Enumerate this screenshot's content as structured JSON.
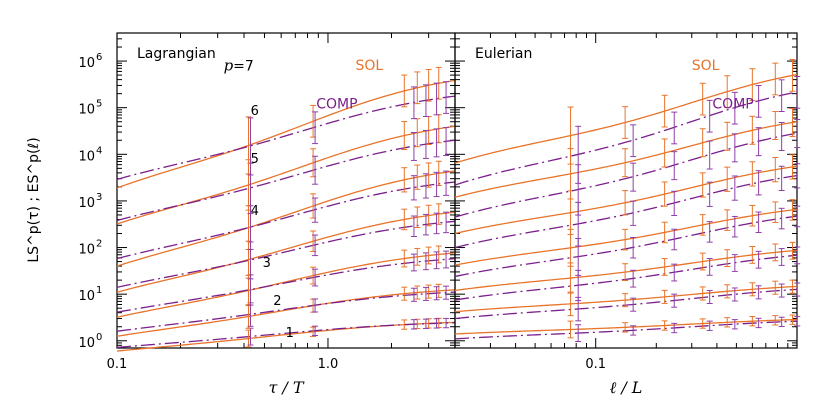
{
  "colors": {
    "sol": "#e8742a",
    "comp": "#7b1f8c",
    "axes": "#000000"
  },
  "chart_data": [
    {
      "type": "line",
      "title": "Lagrangian",
      "xlabel": "τ / T",
      "ylabel": "LS^p(τ) ; ES^p(ℓ)",
      "xscale": "log",
      "yscale": "log",
      "xlim": [
        0.1,
        4.0
      ],
      "ylim": [
        0.7,
        4000000
      ],
      "x_tick_labels": [
        {
          "value": 0.1,
          "label": "0.1"
        },
        {
          "value": 1.0,
          "label": "1.0"
        }
      ],
      "y_tick_labels": [
        {
          "value": 1,
          "base": "10",
          "exp": "0"
        },
        {
          "value": 10,
          "base": "10",
          "exp": "1"
        },
        {
          "value": 100,
          "base": "10",
          "exp": "2"
        },
        {
          "value": 1000,
          "base": "10",
          "exp": "3"
        },
        {
          "value": 10000,
          "base": "10",
          "exp": "4"
        },
        {
          "value": 100000,
          "base": "10",
          "exp": "5"
        },
        {
          "value": 1000000,
          "base": "10",
          "exp": "6"
        }
      ],
      "series_labels": {
        "sol": "SOL",
        "comp": "COMP"
      },
      "order_labels": [
        {
          "p": 7,
          "prefix": "p",
          "text": "=7",
          "x": 0.32,
          "y": 620000
        },
        {
          "p": 6,
          "text": "6",
          "x": 0.43,
          "y": 70000
        },
        {
          "p": 5,
          "text": "5",
          "x": 0.43,
          "y": 6500
        },
        {
          "p": 4,
          "text": "4",
          "x": 0.43,
          "y": 500
        },
        {
          "p": 3,
          "text": "3",
          "x": 0.49,
          "y": 38
        },
        {
          "p": 2,
          "text": "2",
          "x": 0.55,
          "y": 5.8
        },
        {
          "p": 1,
          "text": "1",
          "x": 0.63,
          "y": 1.2
        }
      ],
      "legend_positions": {
        "sol": {
          "x": 1.35,
          "y": 650000
        },
        "comp": {
          "x": 0.88,
          "y": 95000
        }
      },
      "curves": [
        {
          "p": 1,
          "sol_plateau": 2.8,
          "comp_plateau": 2.7,
          "sol_start": 0.6,
          "comp_start": 0.72,
          "knee": 0.55
        },
        {
          "p": 2,
          "sol_plateau": 15,
          "comp_plateau": 13,
          "sol_start": 1.25,
          "comp_start": 1.6,
          "knee": 0.6
        },
        {
          "p": 3,
          "sol_plateau": 100,
          "comp_plateau": 72,
          "sol_start": 3.2,
          "comp_start": 4.1,
          "knee": 0.65
        },
        {
          "p": 4,
          "sol_plateau": 800,
          "comp_plateau": 480,
          "sol_start": 11,
          "comp_start": 14,
          "knee": 0.7
        },
        {
          "p": 5,
          "sol_plateau": 6500,
          "comp_plateau": 3500,
          "sol_start": 40,
          "comp_start": 58,
          "knee": 0.72
        },
        {
          "p": 6,
          "sol_plateau": 60000,
          "comp_plateau": 28000,
          "sol_start": 320,
          "comp_start": 380,
          "knee": 0.75
        },
        {
          "p": 7,
          "sol_plateau": 600000,
          "comp_plateau": 250000,
          "sol_start": 1900,
          "comp_start": 2900,
          "knee": 0.78
        }
      ],
      "errorbar_x": {
        "sol": [
          0.42,
          0.85,
          2.3,
          2.65,
          3.0,
          3.35
        ],
        "comp": [
          0.42,
          0.85,
          2.5,
          2.85,
          3.2,
          3.55
        ]
      }
    },
    {
      "type": "line",
      "title": "Eulerian",
      "xlabel": "ℓ / L",
      "xscale": "log",
      "yscale": "log",
      "xlim": [
        0.02,
        1.0
      ],
      "ylim": [
        0.7,
        4000000
      ],
      "x_tick_labels": [
        {
          "value": 0.1,
          "label": "0.1"
        }
      ],
      "series_labels": {
        "sol": "SOL",
        "comp": "COMP"
      },
      "legend_positions": {
        "sol": {
          "x": 0.3,
          "y": 650000
        },
        "comp": {
          "x": 0.38,
          "y": 95000
        }
      },
      "curves": [
        {
          "p": 1,
          "sol_start": 1.4,
          "sol_plateau": 3.0,
          "comp_start": 1.1,
          "comp_plateau": 2.8,
          "knee": 0.3
        },
        {
          "p": 2,
          "sol_start": 4.2,
          "sol_plateau": 16,
          "comp_start": 3.0,
          "comp_plateau": 14,
          "knee": 0.3
        },
        {
          "p": 3,
          "sol_start": 12,
          "sol_plateau": 100,
          "comp_start": 7.5,
          "comp_plateau": 80,
          "knee": 0.3
        },
        {
          "p": 4,
          "sol_start": 42,
          "sol_plateau": 800,
          "comp_start": 24,
          "comp_plateau": 580,
          "knee": 0.3
        },
        {
          "p": 5,
          "sol_start": 200,
          "sol_plateau": 7000,
          "comp_start": 100,
          "comp_plateau": 4500,
          "knee": 0.3
        },
        {
          "p": 6,
          "sol_start": 1200,
          "sol_plateau": 65000,
          "comp_start": 450,
          "comp_plateau": 38000,
          "knee": 0.3
        },
        {
          "p": 7,
          "sol_start": 6500,
          "sol_plateau": 700000,
          "comp_start": 2200,
          "comp_plateau": 300000,
          "knee": 0.3
        }
      ],
      "errorbar_x": {
        "sol": [
          0.075,
          0.14,
          0.22,
          0.34,
          0.45,
          0.6,
          0.78,
          0.95
        ],
        "comp": [
          0.08,
          0.15,
          0.24,
          0.36,
          0.48,
          0.63,
          0.82,
          0.98
        ]
      }
    }
  ]
}
